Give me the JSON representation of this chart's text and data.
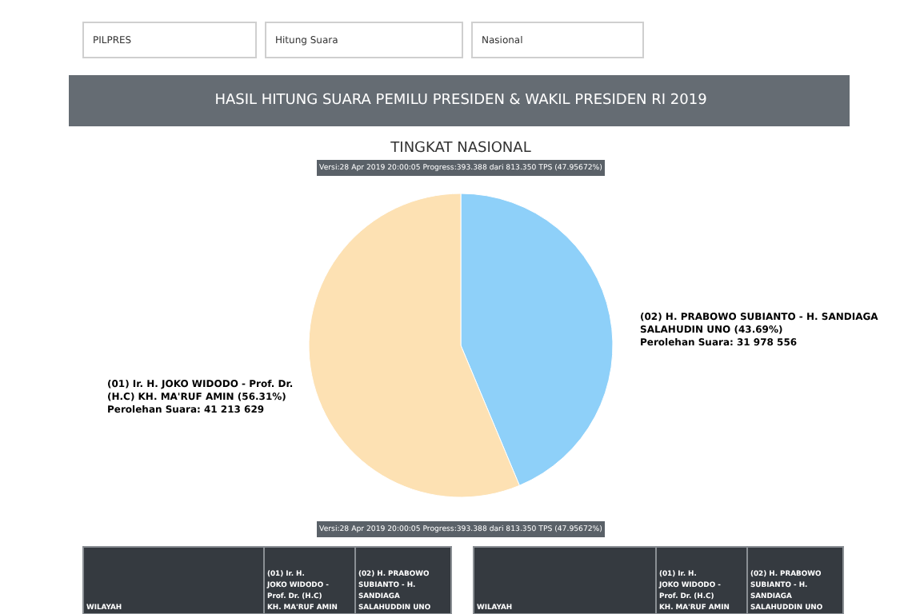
{
  "chart_data": {
    "type": "pie",
    "title": "HASIL HITUNG SUARA PEMILU PRESIDEN & WAKIL PRESIDEN RI 2019",
    "subtitle": "TINGKAT NASIONAL",
    "categories": [
      "(02) H. PRABOWO SUBIANTO - H. SANDIAGA SALAHUDIN UNO (43.69%)",
      "(01) Ir. H. JOKO WIDODO - Prof. Dr. (H.C) KH. MA'RUF AMIN (56.31%)"
    ],
    "values": [
      31978556,
      41213629
    ],
    "colors": [
      "#8ed0f9",
      "#fde1b3"
    ],
    "value_labels": [
      "Perolehan Suara: 31 978 556",
      "Perolehan Suara: 41 213 629"
    ],
    "annotations": [
      "PILPRES",
      "Hitung Suara",
      "Nasional",
      "Versi:28 Apr 2019 20:00:05 Progress:393.388 dari 813.350 TPS (47.95672%)",
      "Versi:28 Apr 2019 20:00:05 Progress:393.388 dari 813.350 TPS (47.95672%)",
      "WILAYAH",
      "(01) Ir. H. JOKO WIDODO - Prof. Dr. (H.C) KH. MA'RUF AMIN",
      "(02) H. PRABOWO SUBIANTO - H. SANDIAGA SALAHUDDIN UNO",
      "WILAYAH",
      "(01) Ir. H. JOKO WIDODO - Prof. Dr. (H.C) KH. MA'RUF AMIN",
      "(02) H. PRABOWO SUBIANTO - H. SANDIAGA SALAHUDDIN UNO"
    ]
  }
}
